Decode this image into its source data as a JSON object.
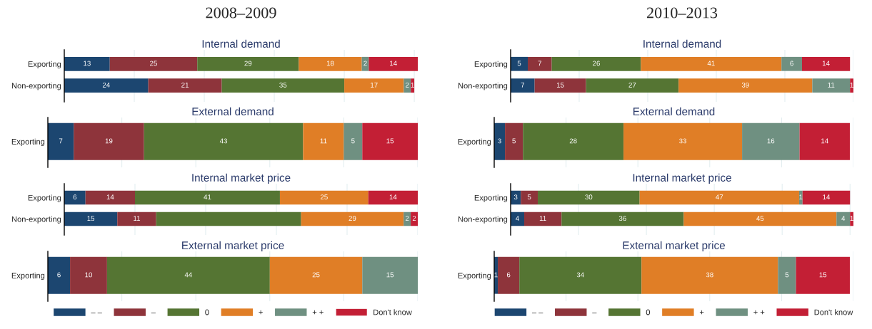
{
  "chart_data": [
    {
      "type": "bar",
      "orientation": "horizontal",
      "stacked": true,
      "title": "2008–2009",
      "subtitle": "Internal demand",
      "categories": [
        "Exporting",
        "Non-exporting"
      ],
      "xlim": [
        0,
        101
      ],
      "xticks": [
        {
          "value": 20,
          "label": null
        },
        {
          "value": 40,
          "label": null
        },
        {
          "value": 60,
          "label": null
        },
        {
          "value": 80,
          "label": null
        },
        {
          "value": 100,
          "label": null
        }
      ],
      "grid": "x",
      "tick_labels": "y",
      "data_labels": true,
      "series": [
        {
          "color": "#1c4670",
          "values": [
            13,
            24
          ]
        },
        {
          "color": "#8e343b",
          "values": [
            25,
            21
          ]
        },
        {
          "color": "#557533",
          "values": [
            29,
            35
          ]
        },
        {
          "color": "#e07e26",
          "values": [
            18,
            17
          ]
        },
        {
          "color": "#6f9081",
          "values": [
            2,
            2
          ]
        },
        {
          "color": "#c31f35",
          "values": [
            14,
            1
          ]
        }
      ]
    },
    {
      "type": "bar",
      "orientation": "horizontal",
      "stacked": true,
      "title": "External demand",
      "categories": [
        "Exporting"
      ],
      "xlim": [
        0,
        100
      ],
      "xticks": [
        {
          "value": 20,
          "label": null
        },
        {
          "value": 40,
          "label": null
        },
        {
          "value": 60,
          "label": null
        },
        {
          "value": 80,
          "label": null
        },
        {
          "value": 100,
          "label": null
        }
      ],
      "grid": "x",
      "tick_labels": "y",
      "data_labels": true,
      "series": [
        {
          "color": "#1c4670",
          "values": [
            7
          ]
        },
        {
          "color": "#8e343b",
          "values": [
            19
          ]
        },
        {
          "color": "#557533",
          "values": [
            43
          ]
        },
        {
          "color": "#e07e26",
          "values": [
            11
          ]
        },
        {
          "color": "#6f9081",
          "values": [
            5
          ]
        },
        {
          "color": "#c31f35",
          "values": [
            15
          ]
        }
      ]
    },
    {
      "type": "bar",
      "orientation": "horizontal",
      "stacked": true,
      "title": "Internal market price",
      "categories": [
        "Exporting",
        "Non-exporting"
      ],
      "xlim": [
        0,
        100
      ],
      "xticks": [
        {
          "value": 20,
          "label": null
        },
        {
          "value": 40,
          "label": null
        },
        {
          "value": 60,
          "label": null
        },
        {
          "value": 80,
          "label": null
        },
        {
          "value": 100,
          "label": null
        }
      ],
      "grid": "x",
      "tick_labels": "y",
      "series": [
        {
          "color": "#1c4670",
          "values": [
            6,
            15
          ],
          "value_labels": [
            "6",
            "15"
          ]
        },
        {
          "color": "#8e343b",
          "values": [
            14,
            11
          ],
          "value_labels": [
            "14",
            "11"
          ]
        },
        {
          "color": "#557533",
          "values": [
            41,
            41
          ],
          "value_labels": [
            "41",
            null
          ]
        },
        {
          "color": "#e07e26",
          "values": [
            25,
            29
          ],
          "value_labels": [
            "25",
            "29"
          ]
        },
        {
          "color": "#6f9081",
          "values": [
            null,
            2
          ],
          "value_labels": [
            null,
            "2"
          ]
        },
        {
          "color": "#c31f35",
          "values": [
            14,
            2
          ],
          "value_labels": [
            "14",
            "2"
          ]
        }
      ]
    },
    {
      "type": "bar",
      "orientation": "horizontal",
      "stacked": true,
      "title": "External market price",
      "categories": [
        "Exporting"
      ],
      "xlim": [
        0,
        100
      ],
      "xticks": [
        {
          "value": 20,
          "label": null
        },
        {
          "value": 40,
          "label": null
        },
        {
          "value": 60,
          "label": null
        },
        {
          "value": 80,
          "label": null
        },
        {
          "value": 100,
          "label": null
        }
      ],
      "grid": "x",
      "tick_labels": "y",
      "data_labels": true,
      "legend": "bottom",
      "series": [
        {
          "name": "– –",
          "color": "#1c4670",
          "values": [
            6
          ]
        },
        {
          "name": "–",
          "color": "#8e343b",
          "values": [
            10
          ]
        },
        {
          "name": "0",
          "color": "#557533",
          "values": [
            44
          ]
        },
        {
          "name": "+",
          "color": "#e07e26",
          "values": [
            25
          ]
        },
        {
          "name": "+ +",
          "color": "#6f9081",
          "values": [
            15
          ]
        },
        {
          "name": "Don't know",
          "color": "#c31f35",
          "values": [
            null
          ]
        }
      ]
    },
    {
      "type": "bar",
      "orientation": "horizontal",
      "stacked": true,
      "title": "2010–2013",
      "subtitle": "Internal demand",
      "categories": [
        "Exporting",
        "Non-exporting"
      ],
      "xlim": [
        0,
        100
      ],
      "xticks": [
        {
          "value": 20,
          "label": null
        },
        {
          "value": 40,
          "label": null
        },
        {
          "value": 60,
          "label": null
        },
        {
          "value": 80,
          "label": null
        },
        {
          "value": 100,
          "label": null
        }
      ],
      "grid": "x",
      "tick_labels": "y",
      "data_labels": true,
      "series": [
        {
          "color": "#1c4670",
          "values": [
            5,
            7
          ]
        },
        {
          "color": "#8e343b",
          "values": [
            7,
            15
          ]
        },
        {
          "color": "#557533",
          "values": [
            26,
            27
          ]
        },
        {
          "color": "#e07e26",
          "values": [
            41,
            39
          ]
        },
        {
          "color": "#6f9081",
          "values": [
            6,
            11
          ]
        },
        {
          "color": "#c31f35",
          "values": [
            14,
            1
          ]
        }
      ]
    },
    {
      "type": "bar",
      "orientation": "horizontal",
      "stacked": true,
      "title": "External demand",
      "categories": [
        "Exporting"
      ],
      "xlim": [
        0,
        100
      ],
      "xticks": [
        {
          "value": 20,
          "label": null
        },
        {
          "value": 40,
          "label": null
        },
        {
          "value": 60,
          "label": null
        },
        {
          "value": 80,
          "label": null
        },
        {
          "value": 100,
          "label": null
        }
      ],
      "grid": "x",
      "tick_labels": "y",
      "data_labels": true,
      "series": [
        {
          "color": "#1c4670",
          "values": [
            3
          ]
        },
        {
          "color": "#8e343b",
          "values": [
            5
          ]
        },
        {
          "color": "#557533",
          "values": [
            28
          ]
        },
        {
          "color": "#e07e26",
          "values": [
            33
          ]
        },
        {
          "color": "#6f9081",
          "values": [
            16
          ]
        },
        {
          "color": "#c31f35",
          "values": [
            14
          ]
        }
      ]
    },
    {
      "type": "bar",
      "orientation": "horizontal",
      "stacked": true,
      "title": "Internal market price",
      "categories": [
        "Exporting",
        "Non-exporting"
      ],
      "xlim": [
        0,
        101
      ],
      "xticks": [
        {
          "value": 20,
          "label": null
        },
        {
          "value": 40,
          "label": null
        },
        {
          "value": 60,
          "label": null
        },
        {
          "value": 80,
          "label": null
        },
        {
          "value": 100,
          "label": null
        }
      ],
      "grid": "x",
      "tick_labels": "y",
      "data_labels": true,
      "series": [
        {
          "color": "#1c4670",
          "values": [
            3,
            4
          ]
        },
        {
          "color": "#8e343b",
          "values": [
            5,
            11
          ]
        },
        {
          "color": "#557533",
          "values": [
            30,
            36
          ]
        },
        {
          "color": "#e07e26",
          "values": [
            47,
            45
          ]
        },
        {
          "color": "#6f9081",
          "values": [
            1,
            4
          ]
        },
        {
          "color": "#c31f35",
          "values": [
            14,
            1
          ]
        }
      ]
    },
    {
      "type": "bar",
      "orientation": "horizontal",
      "stacked": true,
      "title": "External market price",
      "categories": [
        "Exporting"
      ],
      "xlim": [
        0,
        100
      ],
      "xticks": [
        {
          "value": 20,
          "label": null
        },
        {
          "value": 40,
          "label": null
        },
        {
          "value": 60,
          "label": null
        },
        {
          "value": 80,
          "label": null
        },
        {
          "value": 100,
          "label": null
        }
      ],
      "grid": "x",
      "tick_labels": "y",
      "data_labels": true,
      "legend": "bottom",
      "series": [
        {
          "name": "– –",
          "color": "#1c4670",
          "values": [
            1
          ]
        },
        {
          "name": "–",
          "color": "#8e343b",
          "values": [
            6
          ]
        },
        {
          "name": "0",
          "color": "#557533",
          "values": [
            34
          ]
        },
        {
          "name": "+",
          "color": "#e07e26",
          "values": [
            38
          ]
        },
        {
          "name": "+ +",
          "color": "#6f9081",
          "values": [
            5
          ]
        },
        {
          "name": "Don't know",
          "color": "#c31f35",
          "values": [
            15
          ]
        }
      ]
    }
  ]
}
